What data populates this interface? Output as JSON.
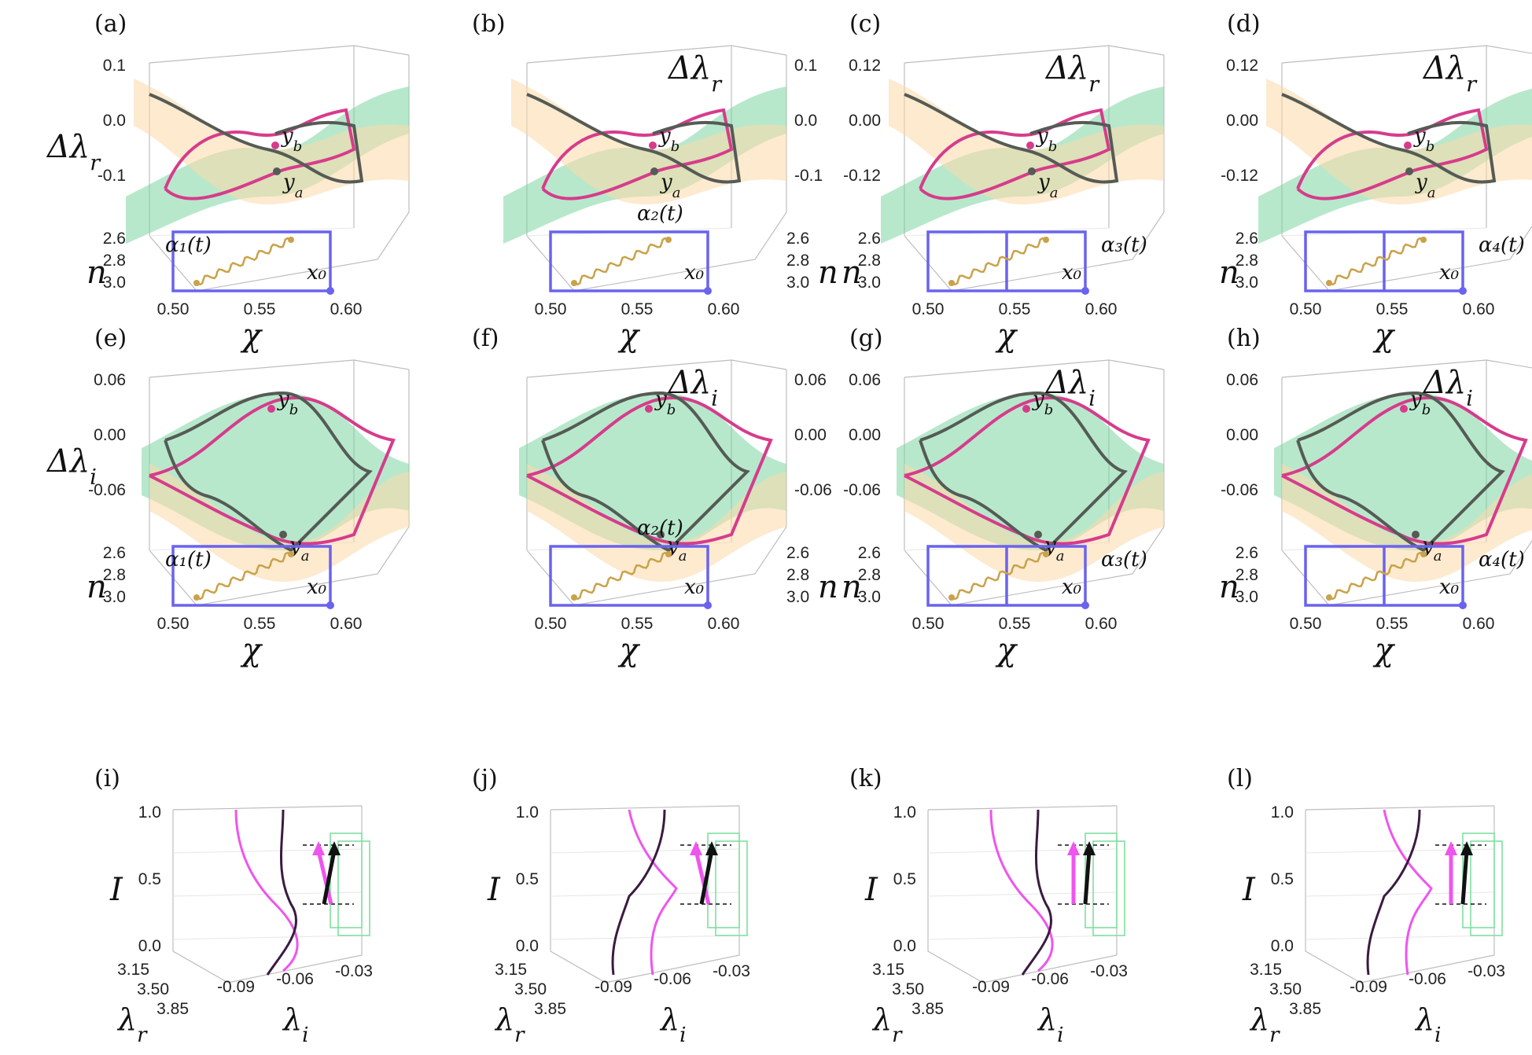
{
  "figure": {
    "row1": [
      {
        "label": "(a)",
        "quantity": "Δλ_r",
        "z_ticks": [
          "0.1",
          "0.0",
          "-0.1"
        ],
        "n_ticks": [
          "2.6",
          "2.8",
          "3.0"
        ],
        "chi_ticks": [
          "0.50",
          "0.55",
          "0.60"
        ],
        "loop": "α₁(t)",
        "points": {
          "start": "x₀",
          "upper": "y_b",
          "lower": "y_a"
        }
      },
      {
        "label": "(b)",
        "quantity": "Δλ_r",
        "z_ticks": [
          "0.1",
          "0.0",
          "-0.1"
        ],
        "n_ticks": [
          "2.6",
          "2.8",
          "3.0"
        ],
        "chi_ticks": [
          "0.50",
          "0.55",
          "0.60"
        ],
        "loop": "α₂(t)",
        "points": {
          "start": "x₀",
          "upper": "y_b",
          "lower": "y_a"
        }
      },
      {
        "label": "(c)",
        "quantity": "Δλ_r",
        "z_ticks": [
          "0.12",
          "0.00",
          "-0.12"
        ],
        "n_ticks": [
          "2.6",
          "2.8",
          "3.0"
        ],
        "chi_ticks": [
          "0.50",
          "0.55",
          "0.60"
        ],
        "loop": "α₃(t)",
        "points": {
          "start": "x₀",
          "upper": "y_b",
          "lower": "y_a"
        }
      },
      {
        "label": "(d)",
        "quantity": "Δλ_r",
        "z_ticks": [
          "0.12",
          "0.00",
          "-0.12"
        ],
        "n_ticks": [
          "2.6",
          "2.8",
          "3.0"
        ],
        "chi_ticks": [
          "0.50",
          "0.55",
          "0.60"
        ],
        "loop": "α₄(t)",
        "points": {
          "start": "x₀",
          "upper": "y_b",
          "lower": "y_a"
        }
      }
    ],
    "row2": [
      {
        "label": "(e)",
        "quantity": "Δλ_i",
        "z_ticks": [
          "0.06",
          "0.00",
          "-0.06"
        ],
        "n_ticks": [
          "2.6",
          "2.8",
          "3.0"
        ],
        "chi_ticks": [
          "0.50",
          "0.55",
          "0.60"
        ],
        "loop": "α₁(t)"
      },
      {
        "label": "(f)",
        "quantity": "Δλ_i",
        "z_ticks": [
          "0.06",
          "0.00",
          "-0.06"
        ],
        "n_ticks": [
          "2.6",
          "2.8",
          "3.0"
        ],
        "chi_ticks": [
          "0.50",
          "0.55",
          "0.60"
        ],
        "loop": "α₂(t)"
      },
      {
        "label": "(g)",
        "quantity": "Δλ_i",
        "z_ticks": [
          "0.06",
          "0.00",
          "-0.06"
        ],
        "n_ticks": [
          "2.6",
          "2.8",
          "3.0"
        ],
        "chi_ticks": [
          "0.50",
          "0.55",
          "0.60"
        ],
        "loop": "α₃(t)"
      },
      {
        "label": "(h)",
        "quantity": "Δλ_i",
        "z_ticks": [
          "0.06",
          "0.00",
          "-0.06"
        ],
        "n_ticks": [
          "2.6",
          "2.8",
          "3.0"
        ],
        "chi_ticks": [
          "0.50",
          "0.55",
          "0.60"
        ],
        "loop": "α₄(t)"
      }
    ],
    "row3": [
      {
        "label": "(i)",
        "I_ticks": [
          "1.0",
          "0.5",
          "0.0"
        ],
        "lr_ticks": [
          "3.15",
          "3.50",
          "3.85"
        ],
        "li_ticks": [
          "-0.09",
          "-0.06",
          "-0.03"
        ]
      },
      {
        "label": "(j)",
        "I_ticks": [
          "1.0",
          "0.5",
          "0.0"
        ],
        "lr_ticks": [
          "3.15",
          "3.50",
          "3.85"
        ],
        "li_ticks": [
          "-0.09",
          "-0.06",
          "-0.03"
        ]
      },
      {
        "label": "(k)",
        "I_ticks": [
          "1.0",
          "0.5",
          "0.0"
        ],
        "lr_ticks": [
          "3.15",
          "3.50",
          "3.85"
        ],
        "li_ticks": [
          "-0.09",
          "-0.06",
          "-0.03"
        ]
      },
      {
        "label": "(l)",
        "I_ticks": [
          "1.0",
          "0.5",
          "0.0"
        ],
        "lr_ticks": [
          "3.15",
          "3.50",
          "3.85"
        ],
        "li_ticks": [
          "-0.09",
          "-0.06",
          "-0.03"
        ]
      }
    ],
    "symbols": {
      "delta_lr": "Δλ",
      "sub_r": "r",
      "sub_i": "i",
      "n": "n",
      "chi": "χ",
      "I": "I",
      "lambda_r": "λ",
      "lambda_i": "λ",
      "x0": "x₀",
      "yb": "y_b",
      "ya": "y_a"
    },
    "colors": {
      "loop": "#6a63ee",
      "pink": "#d63c8c",
      "dark": "#555b55",
      "green": "#7ed6a3",
      "orange": "#fbd8a8",
      "magenta": "#ee55ee",
      "darkcurve": "#3a1b40"
    }
  }
}
